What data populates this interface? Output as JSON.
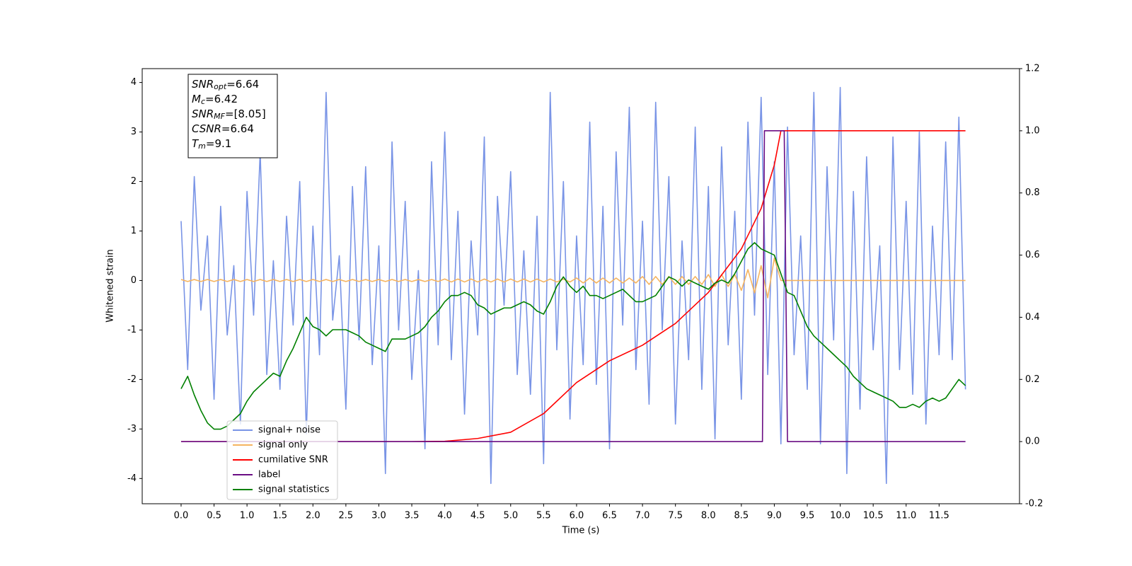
{
  "chart_data": {
    "type": "line",
    "xlabel": "Time (s)",
    "ylabel": "Whitened strain",
    "xlim": [
      -0.59,
      12.72
    ],
    "ylim": [
      -4.51,
      4.28
    ],
    "y2lim": [
      -0.2,
      1.2
    ],
    "xticks": [
      {
        "value": 0,
        "label": "0.0"
      },
      0.5,
      {
        "value": 1,
        "label": "1.0"
      },
      1.5,
      {
        "value": 2,
        "label": "2.0"
      },
      2.5,
      {
        "value": 3,
        "label": "3.0"
      },
      3.5,
      {
        "value": 4,
        "label": "4.0"
      },
      4.5,
      {
        "value": 5,
        "label": "5.0"
      },
      5.5,
      {
        "value": 6,
        "label": "6.0"
      },
      6.5,
      {
        "value": 7,
        "label": "7.0"
      },
      7.5,
      {
        "value": 8,
        "label": "8.0"
      },
      8.5,
      {
        "value": 9,
        "label": "9.0"
      },
      9.5,
      {
        "value": 10,
        "label": "10.0"
      },
      10.5,
      {
        "value": 11,
        "label": "11.0"
      },
      11.5
    ],
    "yticks": [
      -4,
      -3,
      -2,
      -1,
      0,
      1,
      2,
      3,
      4
    ],
    "y2ticks": [
      -0.2,
      {
        "value": 0,
        "label": "0.0"
      },
      0.2,
      0.4,
      0.6,
      0.8,
      {
        "value": 1,
        "label": "1.0"
      },
      1.2
    ],
    "legend": "lower left",
    "x": [
      0,
      0.1,
      0.2,
      0.3,
      0.4,
      0.5,
      0.6,
      0.7,
      0.8,
      0.9,
      1,
      1.1,
      1.2,
      1.3,
      1.4,
      1.5,
      1.6,
      1.7,
      1.8,
      1.9,
      2,
      2.1,
      2.2,
      2.3,
      2.4,
      2.5,
      2.6,
      2.7,
      2.8,
      2.9,
      3,
      3.1,
      3.2,
      3.3,
      3.4,
      3.5,
      3.6,
      3.7,
      3.8,
      3.9,
      4,
      4.1,
      4.2,
      4.3,
      4.4,
      4.5,
      4.6,
      4.7,
      4.8,
      4.9,
      5,
      5.1,
      5.2,
      5.3,
      5.4,
      5.5,
      5.6,
      5.7,
      5.8,
      5.9,
      6,
      6.1,
      6.2,
      6.3,
      6.4,
      6.5,
      6.6,
      6.7,
      6.8,
      6.9,
      7,
      7.1,
      7.2,
      7.3,
      7.4,
      7.5,
      7.6,
      7.7,
      7.8,
      7.9,
      8,
      8.1,
      8.2,
      8.3,
      8.4,
      8.5,
      8.6,
      8.7,
      8.8,
      8.9,
      9,
      9.1,
      9.2,
      9.3,
      9.4,
      9.5,
      9.6,
      9.7,
      9.8,
      9.9,
      10,
      10.1,
      10.2,
      10.3,
      10.4,
      10.5,
      10.6,
      10.7,
      10.8,
      10.9,
      11,
      11.1,
      11.2,
      11.3,
      11.4,
      11.5,
      11.6,
      11.7,
      11.8,
      11.9
    ],
    "series": [
      {
        "name": "signal+ noise",
        "color": "#7994e6",
        "axis": "y",
        "values": [
          1.2,
          -1.8,
          2.1,
          -0.6,
          0.9,
          -2.4,
          1.5,
          -1.1,
          0.3,
          -2.9,
          1.8,
          -0.7,
          2.6,
          -1.9,
          0.4,
          -2.2,
          1.3,
          -0.9,
          2.0,
          -3.1,
          1.1,
          -1.5,
          3.8,
          -0.8,
          0.5,
          -2.6,
          1.9,
          -1.2,
          2.3,
          -1.7,
          0.7,
          -3.9,
          2.8,
          -1.0,
          1.6,
          -2.0,
          0.2,
          -3.4,
          2.4,
          -1.3,
          3.0,
          -1.6,
          1.4,
          -2.7,
          0.8,
          -1.1,
          2.9,
          -4.1,
          1.7,
          -0.5,
          2.2,
          -1.9,
          0.6,
          -2.3,
          1.3,
          -3.7,
          3.8,
          -1.4,
          2.0,
          -2.8,
          0.9,
          -1.7,
          3.2,
          -2.1,
          1.5,
          -3.4,
          2.6,
          -0.9,
          3.5,
          -1.8,
          1.2,
          -2.5,
          3.6,
          -1.0,
          2.1,
          -2.9,
          0.8,
          -1.6,
          3.1,
          -2.2,
          1.9,
          -3.2,
          2.7,
          -1.3,
          1.4,
          -2.4,
          3.2,
          -0.7,
          3.7,
          -1.9,
          2.4,
          -3.3,
          3.1,
          -1.5,
          0.9,
          -2.2,
          3.8,
          -3.3,
          2.3,
          -1.2,
          3.9,
          -3.9,
          1.8,
          -2.6,
          2.5,
          -1.4,
          0.7,
          -4.1,
          2.9,
          -1.8,
          1.6,
          -2.3,
          3.0,
          -2.9,
          1.1,
          -1.5,
          2.8,
          -1.6,
          3.3,
          -2.2
        ]
      },
      {
        "name": "signal only",
        "color": "#f5b460",
        "axis": "y",
        "values": [
          0.02,
          -0.02,
          0.02,
          -0.02,
          0.02,
          -0.02,
          0.02,
          -0.02,
          0.02,
          -0.02,
          0.02,
          -0.02,
          0.02,
          -0.02,
          0.02,
          -0.02,
          0.02,
          -0.02,
          0.02,
          -0.02,
          0.02,
          -0.02,
          0.02,
          -0.02,
          0.02,
          -0.02,
          0.02,
          -0.02,
          0.02,
          -0.02,
          0.02,
          -0.02,
          0.02,
          -0.02,
          0.02,
          -0.02,
          0.02,
          -0.02,
          0.02,
          -0.02,
          0.03,
          -0.03,
          0.03,
          -0.03,
          0.03,
          -0.03,
          0.03,
          -0.03,
          0.03,
          -0.03,
          0.03,
          -0.03,
          0.03,
          -0.03,
          0.03,
          -0.03,
          0.03,
          -0.03,
          0.03,
          -0.03,
          0.05,
          -0.05,
          0.05,
          -0.05,
          0.05,
          -0.05,
          0.05,
          -0.05,
          0.05,
          -0.05,
          0.08,
          -0.08,
          0.08,
          -0.08,
          0.08,
          -0.08,
          0.08,
          -0.08,
          0.08,
          -0.08,
          0.12,
          -0.12,
          0.12,
          -0.12,
          0.12,
          -0.2,
          0.22,
          -0.25,
          0.3,
          -0.35,
          0.45,
          0,
          0,
          0,
          0,
          0,
          0,
          0,
          0,
          0,
          0,
          0,
          0,
          0,
          0,
          0,
          0,
          0,
          0,
          0,
          0,
          0,
          0,
          0,
          0,
          0,
          0,
          0,
          0,
          0
        ]
      },
      {
        "name": "cumilative SNR",
        "color": "#ff0000",
        "axis": "y2",
        "x": [
          0,
          3,
          3.5,
          4,
          4.5,
          5,
          5.5,
          6,
          6.5,
          7,
          7.5,
          8,
          8.5,
          8.8,
          9,
          9.1,
          11.9
        ],
        "values": [
          0,
          0,
          0,
          0.001,
          0.01,
          0.03,
          0.09,
          0.19,
          0.26,
          0.31,
          0.38,
          0.48,
          0.62,
          0.75,
          0.89,
          1,
          1
        ]
      },
      {
        "name": "label",
        "color": "#6a0d83",
        "axis": "y2",
        "x": [
          0,
          8.82,
          8.85,
          9.15,
          9.2,
          11.9
        ],
        "values": [
          0,
          0,
          1,
          1,
          0,
          0
        ]
      },
      {
        "name": "signal statistics",
        "color": "#008000",
        "axis": "y2",
        "values": [
          0.17,
          0.21,
          0.15,
          0.1,
          0.06,
          0.04,
          0.04,
          0.05,
          0.07,
          0.09,
          0.13,
          0.16,
          0.18,
          0.2,
          0.22,
          0.21,
          0.26,
          0.3,
          0.35,
          0.4,
          0.37,
          0.36,
          0.34,
          0.36,
          0.36,
          0.36,
          0.35,
          0.34,
          0.32,
          0.31,
          0.3,
          0.29,
          0.33,
          0.33,
          0.33,
          0.34,
          0.35,
          0.37,
          0.4,
          0.42,
          0.45,
          0.47,
          0.47,
          0.48,
          0.47,
          0.44,
          0.43,
          0.41,
          0.42,
          0.43,
          0.43,
          0.44,
          0.45,
          0.44,
          0.42,
          0.41,
          0.45,
          0.5,
          0.53,
          0.5,
          0.48,
          0.5,
          0.47,
          0.47,
          0.46,
          0.47,
          0.48,
          0.49,
          0.47,
          0.45,
          0.45,
          0.46,
          0.47,
          0.5,
          0.53,
          0.52,
          0.5,
          0.52,
          0.51,
          0.5,
          0.49,
          0.51,
          0.52,
          0.51,
          0.54,
          0.58,
          0.62,
          0.64,
          0.62,
          0.61,
          0.6,
          0.54,
          0.48,
          0.47,
          0.42,
          0.37,
          0.34,
          0.32,
          0.3,
          0.28,
          0.26,
          0.24,
          0.21,
          0.19,
          0.17,
          0.16,
          0.15,
          0.14,
          0.13,
          0.11,
          0.11,
          0.12,
          0.11,
          0.13,
          0.14,
          0.13,
          0.14,
          0.17,
          0.2,
          0.18
        ]
      }
    ],
    "annotations": [
      {
        "symbol": "SNR",
        "sub": "opt",
        "text": "=6.64"
      },
      {
        "symbol": "M",
        "sub": "c",
        "text": "=6.42"
      },
      {
        "symbol": "SNR",
        "sub": "MF",
        "text": "=[8.05]"
      },
      {
        "symbol": "CSNR",
        "text": "=6.64"
      },
      {
        "symbol": "T",
        "sub": "m",
        "text": "=9.1"
      }
    ]
  }
}
